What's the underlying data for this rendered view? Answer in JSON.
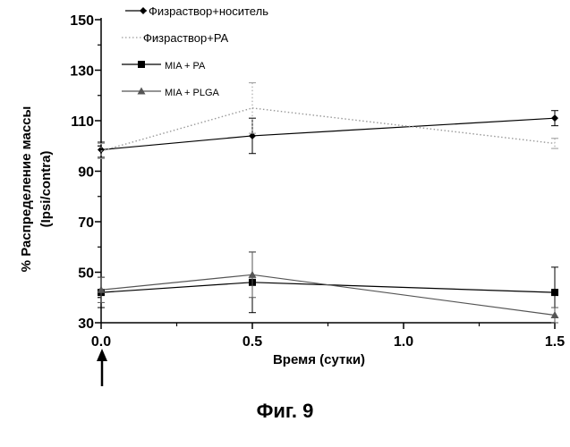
{
  "caption": "Фиг. 9",
  "chart_data": {
    "type": "line",
    "title": "",
    "xlabel": "Время (сутки)",
    "ylabel_line1": "% Распределение массы",
    "ylabel_line2": "(Ipsi/contra)",
    "xlim": [
      0,
      1.5
    ],
    "ylim": [
      30,
      150
    ],
    "x_ticks": [
      0.0,
      0.5,
      1.0,
      1.5
    ],
    "x_tick_labels": [
      "0.0",
      "0.5",
      "1.0",
      "1.5"
    ],
    "y_ticks": [
      30,
      50,
      70,
      90,
      110,
      130,
      150
    ],
    "y_tick_labels": [
      "30",
      "50",
      "70",
      "90",
      "110",
      "130",
      "150"
    ],
    "grid": false,
    "legend_position": "top-left",
    "annotation": "dosing arrow at x = 0.0",
    "series": [
      {
        "name": "Физраствор+носитель",
        "marker": "diamond",
        "style": "solid",
        "color": "#000000",
        "x": [
          0.0,
          0.5,
          1.5
        ],
        "y": [
          98.5,
          104,
          111
        ],
        "err": [
          3,
          7,
          3
        ]
      },
      {
        "name": "Физраствор+PA",
        "marker": "none",
        "style": "dotted",
        "color": "#9a9a9a",
        "x": [
          0.0,
          0.5,
          1.5
        ],
        "y": [
          98,
          115,
          101
        ],
        "err": [
          3,
          10,
          2
        ]
      },
      {
        "name": "MIA + PA",
        "marker": "square",
        "style": "solid",
        "color": "#000000",
        "x": [
          0.0,
          0.5,
          1.5
        ],
        "y": [
          42,
          46,
          42
        ],
        "err": [
          6,
          12,
          10
        ]
      },
      {
        "name": "MIA + PLGA",
        "marker": "triangle",
        "style": "solid",
        "color": "#555555",
        "x": [
          0.0,
          0.5,
          1.5
        ],
        "y": [
          43,
          49,
          33
        ],
        "err": [
          5,
          9,
          3
        ]
      }
    ]
  }
}
